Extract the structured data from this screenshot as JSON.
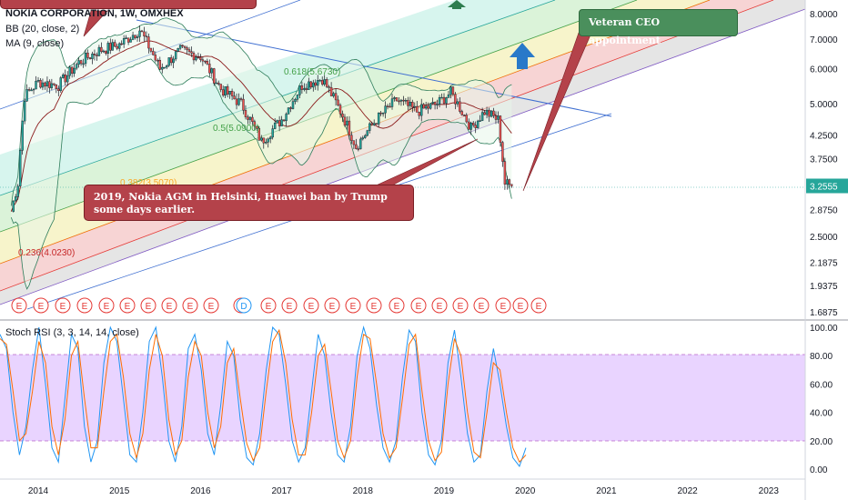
{
  "legend": {
    "symbol": "NOKIA CORPORATION, 1W, OMXHEX",
    "bb": "BB (20, close, 2)",
    "ma": "MA (9, close)",
    "stoch": "Stoch RSI (3, 3, 14, 14, close)"
  },
  "annotations": {
    "agm": "2019, Nokia AGM in Helsinki, Huawei ban by Trump some days earlier.",
    "ceo": "Veteran CEO appointment"
  },
  "colors": {
    "bull": "#26a69a",
    "bear": "#ef5350",
    "bb_band": "#2e7d5b",
    "ma": "#8b1a1a",
    "stoch_k": "#2196f3",
    "stoch_d": "#ff6d00",
    "stoch_band": "#e1c6ff",
    "callout": "#b4424a",
    "arrow_up": "#2979c9"
  },
  "chart_data": [
    {
      "type": "candlestick",
      "title": "NOKIA CORPORATION, 1W, OMXHEX",
      "scale": "log",
      "ylim": [
        1.6875,
        8.5
      ],
      "y_ticks": [
        "8.0000",
        "7.0000",
        "6.0000",
        "5.0000",
        "4.2500",
        "3.7500",
        "2.8750",
        "2.5000",
        "2.1875",
        "1.9375",
        "1.6875"
      ],
      "last_price": "3.2555",
      "x_ticks": [
        "2014",
        "2015",
        "2016",
        "2017",
        "2018",
        "2019",
        "2020",
        "2021",
        "2022",
        "2023"
      ],
      "series_close": [
        {
          "x": "2013-09",
          "y": 2.85
        },
        {
          "x": "2013-10",
          "y": 3.3
        },
        {
          "x": "2013-11",
          "y": 5.2
        },
        {
          "x": "2014-01",
          "y": 5.6
        },
        {
          "x": "2014-04",
          "y": 5.5
        },
        {
          "x": "2014-07",
          "y": 6.2
        },
        {
          "x": "2014-10",
          "y": 6.6
        },
        {
          "x": "2015-01",
          "y": 6.8
        },
        {
          "x": "2015-04",
          "y": 7.35
        },
        {
          "x": "2015-07",
          "y": 6.0
        },
        {
          "x": "2015-10",
          "y": 6.6
        },
        {
          "x": "2016-01",
          "y": 6.4
        },
        {
          "x": "2016-04",
          "y": 5.4
        },
        {
          "x": "2016-07",
          "y": 5.0
        },
        {
          "x": "2016-10",
          "y": 4.1
        },
        {
          "x": "2017-01",
          "y": 4.6
        },
        {
          "x": "2017-04",
          "y": 5.5
        },
        {
          "x": "2017-07",
          "y": 5.7
        },
        {
          "x": "2017-10",
          "y": 4.7
        },
        {
          "x": "2017-12",
          "y": 4.0
        },
        {
          "x": "2018-03",
          "y": 4.6
        },
        {
          "x": "2018-06",
          "y": 5.1
        },
        {
          "x": "2018-09",
          "y": 4.8
        },
        {
          "x": "2018-12",
          "y": 5.0
        },
        {
          "x": "2019-02",
          "y": 5.3
        },
        {
          "x": "2019-05",
          "y": 4.4
        },
        {
          "x": "2019-07",
          "y": 4.8
        },
        {
          "x": "2019-09",
          "y": 4.6
        },
        {
          "x": "2019-10",
          "y": 3.3
        },
        {
          "x": "2019-11",
          "y": 3.2555
        }
      ],
      "fib_labels": [
        {
          "label": "0.618(5.6730)",
          "value": 5.673
        },
        {
          "label": "0.5(5.0900)",
          "value": 5.09
        },
        {
          "label": "0.382(3.5070)",
          "value": 3.507
        },
        {
          "label": "0.236(4.0230)",
          "value": 4.023
        }
      ],
      "earnings_markers": [
        "E",
        "E",
        "E",
        "E",
        "E",
        "E",
        "E",
        "E",
        "E",
        "E",
        "E",
        "D",
        "E",
        "E",
        "E",
        "E",
        "E",
        "E",
        "E",
        "E",
        "E",
        "E",
        "E",
        "E",
        "E",
        "E",
        "E",
        "E",
        "E",
        "E",
        "E",
        "E"
      ]
    },
    {
      "type": "line",
      "title": "Stoch RSI (3, 3, 14, 14, close)",
      "ylim": [
        0,
        100
      ],
      "y_ticks": [
        "100.00",
        "80.00",
        "60.00",
        "40.00",
        "20.00",
        "0.00"
      ],
      "band": [
        20,
        80
      ],
      "series": [
        {
          "name": "K",
          "values": [
            95,
            85,
            40,
            10,
            30,
            70,
            100,
            60,
            15,
            5,
            50,
            95,
            85,
            30,
            5,
            20,
            75,
            100,
            90,
            50,
            10,
            5,
            40,
            90,
            100,
            65,
            20,
            5,
            30,
            85,
            95,
            70,
            25,
            10,
            45,
            90,
            80,
            35,
            8,
            3,
            25,
            70,
            100,
            95,
            60,
            20,
            5,
            15,
            55,
            95,
            80,
            40,
            10,
            5,
            30,
            80,
            100,
            85,
            45,
            15,
            5,
            20,
            65,
            98,
            90,
            40,
            10,
            3,
            20,
            75,
            98,
            65,
            25,
            5,
            10,
            55,
            85,
            60,
            30,
            8,
            2,
            15
          ]
        },
        {
          "name": "D",
          "values": [
            92,
            88,
            55,
            20,
            25,
            55,
            90,
            75,
            30,
            10,
            35,
            80,
            90,
            50,
            15,
            15,
            55,
            90,
            95,
            65,
            25,
            8,
            25,
            70,
            95,
            80,
            35,
            10,
            20,
            65,
            90,
            80,
            40,
            15,
            30,
            75,
            85,
            50,
            18,
            6,
            15,
            55,
            90,
            98,
            75,
            35,
            10,
            10,
            40,
            80,
            88,
            55,
            20,
            8,
            20,
            65,
            95,
            92,
            60,
            25,
            8,
            15,
            50,
            88,
            95,
            55,
            20,
            6,
            12,
            60,
            92,
            80,
            40,
            12,
            8,
            40,
            75,
            70,
            40,
            15,
            5,
            10
          ]
        }
      ]
    }
  ]
}
